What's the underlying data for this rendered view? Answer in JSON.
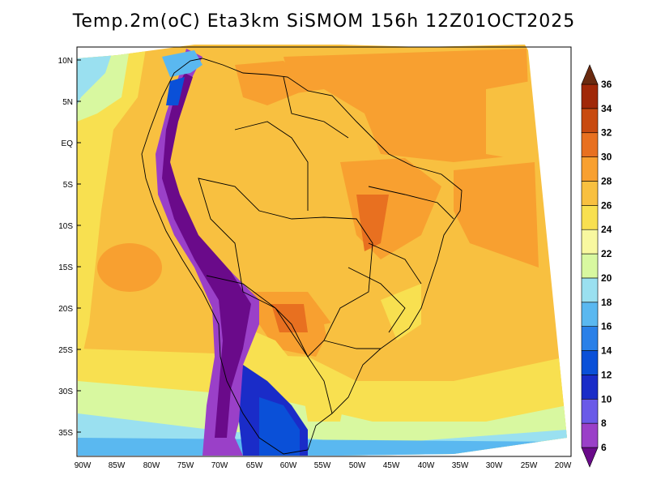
{
  "title": "Temp.2m(oC) Eta3km SiSMOM 156h 12Z01OCT2025",
  "colorbar": {
    "levels": [
      "6",
      "8",
      "10",
      "12",
      "14",
      "16",
      "18",
      "20",
      "22",
      "24",
      "26",
      "28",
      "30",
      "32",
      "34",
      "36"
    ],
    "colors": [
      "#6a0a8a",
      "#9a40c8",
      "#6a5ae8",
      "#1a2cc8",
      "#0a50d8",
      "#2a80e8",
      "#5ab8f0",
      "#9ae0f0",
      "#d8f8a0",
      "#f8f8a0",
      "#f8e050",
      "#f8c040",
      "#f8a030",
      "#e87020",
      "#c84a10",
      "#a02808",
      "#6a2a10"
    ]
  },
  "axes": {
    "lat_labels": [
      "10N",
      "5N",
      "EQ",
      "5S",
      "10S",
      "15S",
      "20S",
      "25S",
      "30S",
      "35S"
    ],
    "lon_labels": [
      "90W",
      "85W",
      "80W",
      "75W",
      "70W",
      "65W",
      "60W",
      "55W",
      "50W",
      "45W",
      "40W",
      "35W",
      "30W",
      "25W",
      "20W"
    ]
  },
  "field": {
    "ocean_base": "#f8c040",
    "land_base": "#f8c040",
    "regions": [
      {
        "name": "south-atlantic-warm",
        "color": "#f8a030"
      },
      {
        "name": "pacific-warm",
        "color": "#f8a030"
      },
      {
        "name": "amazon-warm",
        "color": "#f8a030"
      },
      {
        "name": "south-cool",
        "color": "#f8e050"
      },
      {
        "name": "pacific-cool-band",
        "color": "#d8f8a0"
      },
      {
        "name": "andes-cold",
        "color": "#6a0a8a"
      }
    ]
  }
}
